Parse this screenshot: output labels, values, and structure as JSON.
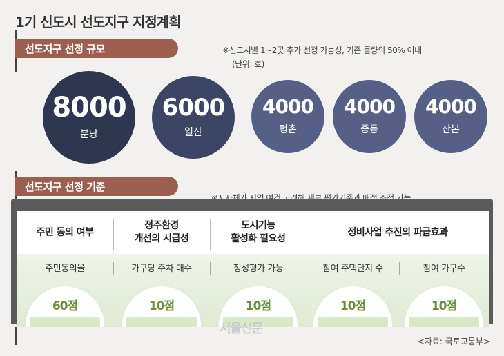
{
  "title": "1기 신도시 선도지구 지정계획",
  "section1": {
    "label": "선도지구 선정 규모",
    "note": "※신도시별 1~2곳 추가 선정 가능성, 기존 물량의 50% 이내",
    "unit": "(단위: 호)",
    "bubbles": [
      {
        "value": "8000",
        "name": "분당",
        "color": "#2f3650"
      },
      {
        "value": "6000",
        "name": "일산",
        "color": "#3c4566"
      },
      {
        "value": "4000",
        "name": "평촌",
        "color": "#565f86"
      },
      {
        "value": "4000",
        "name": "중동",
        "color": "#565f86"
      },
      {
        "value": "4000",
        "name": "산본",
        "color": "#565f86"
      }
    ]
  },
  "section2": {
    "label": "선도지구 선정 기준",
    "note": "※지자체가 지역 여건 고려해 세부 평가기준과 배점 조정 가능",
    "columns": [
      {
        "line1": "주민 동의 여부",
        "line2": ""
      },
      {
        "line1": "정주환경",
        "line2": "개선의 시급성"
      },
      {
        "line1": "도시기능",
        "line2": "활성화 필요성"
      },
      {
        "line1": "정비사업 추진의 파급효과",
        "line2": ""
      }
    ],
    "criteria": [
      {
        "label": "주민동의율",
        "score": "60점"
      },
      {
        "label": "가구당 주차 대수",
        "score": "10점"
      },
      {
        "label": "정성평가 가능",
        "score": "10점"
      },
      {
        "label": "참여 주택단지 수",
        "score": "10점"
      },
      {
        "label": "참여 가구수",
        "score": "10점"
      }
    ]
  },
  "watermark": "서울신문",
  "source": "<자료: 국토교통부>"
}
